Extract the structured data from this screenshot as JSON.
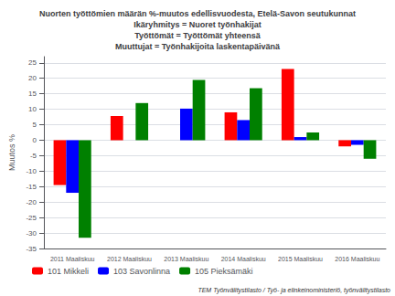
{
  "chart_data": {
    "type": "bar",
    "title": "Nuorten työttömien määrän %-muutos edellisvuodesta, Etelä-Savon seutukunnat\nIkäryhmitys = Nuoret työnhakijat\nTyöttömät = Työttömät yhteensä\nMuuttujat = Työnhakijoita laskentapäivänä",
    "ylabel": "Muutos %",
    "annotations": [
      "TEM Työnvälitystilasto / Työ- ja elinkeinoministeriö, työnvälitystilasto"
    ],
    "categories": [
      "2011 Maaliskuu",
      "2012 Maaliskuu",
      "2013 Maaliskuu",
      "2014 Maaliskuu",
      "2015 Maaliskuu",
      "2016 Maaliskuu"
    ],
    "series": [
      {
        "name": "101 Mikkeli",
        "color": "#FF0000",
        "values": [
          -14.5,
          7.8,
          0.0,
          9.0,
          23.0,
          -2.0
        ]
      },
      {
        "name": "103 Savonlinna",
        "color": "#0000FF",
        "values": [
          -17.0,
          0.0,
          10.2,
          6.5,
          1.0,
          -1.5
        ]
      },
      {
        "name": "105 Pieksämäki",
        "color": "#008000",
        "values": [
          -31.5,
          12.0,
          19.5,
          16.8,
          2.5,
          -6.0
        ]
      }
    ],
    "ylim": [
      -35,
      27
    ],
    "yticks": [
      -35,
      -30,
      -25,
      -20,
      -15,
      -10,
      -5,
      0,
      5,
      10,
      15,
      20,
      25
    ],
    "grid": true,
    "legend": "lower left"
  }
}
